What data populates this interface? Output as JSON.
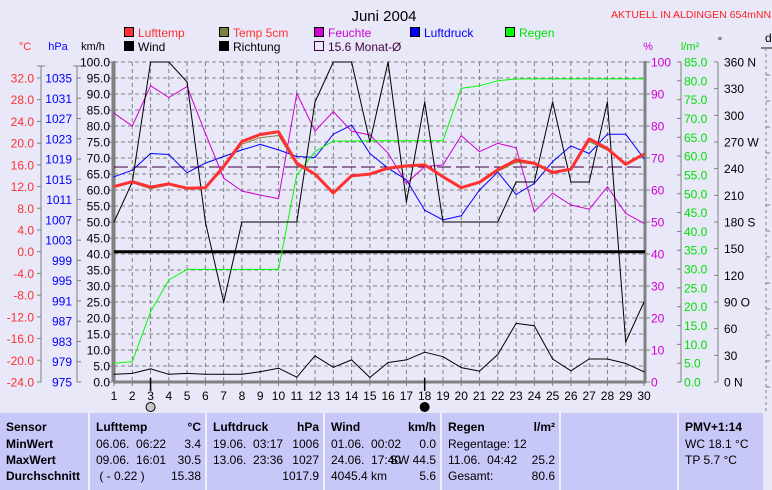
{
  "header": {
    "title": "Juni 2004",
    "station": "AKTUELL IN ALDINGEN 654mNN"
  },
  "legend": [
    {
      "label": "Lufttemp",
      "color": "#ff3030",
      "text_color": "#ff3030"
    },
    {
      "label": "Temp 5cm",
      "color": "#808040",
      "text_color": "#ff3030"
    },
    {
      "label": "Feuchte",
      "color": "#d000d0",
      "text_color": "#d000d0"
    },
    {
      "label": "Luftdruck",
      "color": "#0000ff",
      "text_color": "#0000ff"
    },
    {
      "label": "Regen",
      "color": "#00ff00",
      "text_color": "#00e000"
    },
    {
      "label": "Wind",
      "color": "#000000",
      "text_color": "#000000"
    },
    {
      "label": "Richtung",
      "color": "#000000",
      "text_color": "#000000"
    },
    {
      "label": "15.6 Monat-Ø",
      "color": "#400040",
      "text_color": "#400040"
    }
  ],
  "chart_data": {
    "type": "line",
    "title": "Juni 2004",
    "x": [
      1,
      2,
      3,
      4,
      5,
      6,
      7,
      8,
      9,
      10,
      11,
      12,
      13,
      14,
      15,
      16,
      17,
      18,
      19,
      20,
      21,
      22,
      23,
      24,
      25,
      26,
      27,
      28,
      29,
      30
    ],
    "xlim": [
      1,
      30
    ],
    "grid": true,
    "axes": {
      "temp": {
        "unit": "°C",
        "range": [
          -24,
          32
        ],
        "ticks": [
          "32.0",
          "28.0",
          "24.0",
          "20.0",
          "16.0",
          "12.0",
          "8.0",
          "4.0",
          "0.0",
          "-4.0",
          "-8.0",
          "-12.0",
          "-16.0",
          "-20.0",
          "-24.0"
        ],
        "color": "#ff3030"
      },
      "pressure": {
        "unit": "hPa",
        "range": [
          975,
          1035
        ],
        "ticks": [
          "1035",
          "1031",
          "1027",
          "1023",
          "1019",
          "1015",
          "1011",
          "1007",
          "1003",
          "999",
          "995",
          "991",
          "987",
          "983",
          "979",
          "975"
        ],
        "color": "#0000ff"
      },
      "wind": {
        "unit": "km/h",
        "range": [
          0,
          100
        ],
        "ticks": [
          "100.0",
          "95.0",
          "90.0",
          "85.0",
          "80.0",
          "75.0",
          "70.0",
          "65.0",
          "60.0",
          "55.0",
          "50.0",
          "45.0",
          "40.0",
          "35.0",
          "30.0",
          "25.0",
          "20.0",
          "15.0",
          "10.0",
          "5.0",
          "0.0"
        ],
        "color": "#000000"
      },
      "humidity": {
        "unit": "%",
        "range": [
          0,
          100
        ],
        "ticks": [
          "100",
          "90",
          "80",
          "70",
          "60",
          "50",
          "40",
          "30",
          "20",
          "10",
          "0"
        ],
        "color": "#d000d0"
      },
      "rain": {
        "unit": "l/m²",
        "range": [
          0,
          85
        ],
        "ticks": [
          "85.0",
          "80.0",
          "75.0",
          "70.0",
          "65.0",
          "60.0",
          "55.0",
          "50.0",
          "45.0",
          "40.0",
          "35.0",
          "30.0",
          "25.0",
          "20.0",
          "15.0",
          "10.0",
          "5.0",
          "0.0"
        ],
        "color": "#00e000"
      },
      "direction": {
        "unit": "°",
        "range": [
          0,
          360
        ],
        "ticks": [
          "360 N",
          "330",
          "300",
          "270 W",
          "240",
          "210",
          "180 S",
          "150",
          "120",
          "90  O",
          "60",
          "30",
          "0   N"
        ],
        "color": "#000000"
      },
      "extra": {
        "unit": "d"
      }
    },
    "series": [
      {
        "name": "Luftdruck",
        "axis": "pressure",
        "color": "#0000ff",
        "values": [
          1015.5,
          1016.8,
          1020.1,
          1019.9,
          1016.3,
          1018.2,
          1019.5,
          1020.8,
          1021.9,
          1020.8,
          1019.5,
          1019.3,
          1023.9,
          1025.7,
          1020.1,
          1017.2,
          1014.9,
          1008.9,
          1007.0,
          1007.8,
          1012.9,
          1016.4,
          1012.0,
          1014.2,
          1018.5,
          1021.6,
          1020.1,
          1023.9,
          1023.9,
          1019.1
        ]
      },
      {
        "name": "Feuchte",
        "axis": "humidity",
        "color": "#d000d0",
        "values": [
          84.0,
          80.0,
          92.6,
          88.9,
          92.3,
          77.7,
          63.7,
          59.7,
          58.4,
          57.3,
          90.2,
          78.4,
          84.5,
          78.4,
          77.2,
          71.5,
          62.1,
          67.3,
          67.8,
          77.0,
          72.0,
          74.6,
          73.2,
          53.2,
          59.0,
          55.3,
          54.0,
          61.0,
          52.7,
          49.6
        ]
      },
      {
        "name": "Regen",
        "axis": "rain",
        "color": "#00ff00",
        "values": [
          5.0,
          5.4,
          18.7,
          27.1,
          29.9,
          29.9,
          29.9,
          29.9,
          29.9,
          29.9,
          55.0,
          61.2,
          64.0,
          64.0,
          64.1,
          64.1,
          64.1,
          64.1,
          64.1,
          78.0,
          78.7,
          80.0,
          80.5,
          80.5,
          80.5,
          80.5,
          80.5,
          80.5,
          80.5,
          80.5
        ]
      },
      {
        "name": "Richtung",
        "axis": "direction",
        "color": "#000000",
        "values": [
          180,
          225,
          360,
          360,
          337.5,
          180,
          90,
          180,
          180,
          180,
          180,
          315,
          360,
          360,
          270,
          360,
          202.5,
          315,
          180,
          180,
          180,
          180,
          225,
          225,
          315,
          225,
          225,
          315,
          45,
          90
        ]
      },
      {
        "name": "Wind",
        "axis": "wind",
        "color": "#000000",
        "values": [
          2.4,
          2.7,
          4.1,
          2.4,
          2.7,
          2.4,
          2.4,
          2.4,
          3.2,
          4.3,
          1.5,
          8.2,
          4.6,
          6.9,
          1.4,
          6.1,
          6.9,
          9.3,
          7.9,
          4.5,
          3.4,
          8.6,
          18.3,
          17.6,
          7.2,
          3.5,
          7.2,
          7.2,
          5.8,
          3.2
        ]
      },
      {
        "name": "Temp 5cm",
        "axis": "temp",
        "color": "#808040",
        "values": [
          11.9,
          12.7,
          11.6,
          12.3,
          11.5,
          11.8,
          15.5,
          19.8,
          21.0,
          21.4,
          15.9,
          14.2,
          10.9,
          13.8,
          14.3,
          15.2,
          15.6,
          15.9,
          13.9,
          11.9,
          12.7,
          14.8,
          16.5,
          16.1,
          14.6,
          15.1,
          20.3,
          18.7,
          16.0,
          17.9
        ]
      },
      {
        "name": "Lufttemp",
        "axis": "temp",
        "color": "#ff3030",
        "values": [
          12.0,
          12.9,
          11.9,
          12.5,
          11.7,
          11.8,
          15.7,
          20.3,
          21.6,
          22.1,
          16.3,
          14.3,
          10.8,
          14.0,
          14.3,
          15.4,
          15.8,
          16.0,
          13.8,
          11.8,
          12.8,
          15.1,
          16.9,
          16.3,
          14.6,
          15.2,
          20.8,
          19.0,
          16.1,
          18.0
        ]
      }
    ],
    "reference_lines": [
      {
        "name": "zero-celsius-line",
        "axis": "temp",
        "value": 0.0,
        "color": "#000000"
      },
      {
        "name": "monthly-average-line",
        "axis": "temp",
        "value": 15.6,
        "color": "#400040",
        "label": "15.6 Monat-Ø"
      }
    ],
    "moon_phases": [
      {
        "day": 3,
        "phase": "full-moon"
      },
      {
        "day": 18,
        "phase": "new-moon"
      }
    ]
  },
  "footer": {
    "columns": [
      {
        "header": "Sensor",
        "unit": "",
        "rows": [
          {
            "l": "MinWert",
            "r": ""
          },
          {
            "l": "MaxWert",
            "r": ""
          },
          {
            "l": "Durchschnitt",
            "r": ""
          }
        ]
      },
      {
        "header": "Lufttemp",
        "unit": "°C",
        "rows": [
          {
            "l": "06.06.  06:22",
            "r": "3.4"
          },
          {
            "l": "09.06.  16:01",
            "r": "30.5"
          },
          {
            "l": " ( - 0.22 )",
            "r": "15.38"
          }
        ]
      },
      {
        "header": "Luftdruck",
        "unit": "hPa",
        "rows": [
          {
            "l": "19.06.  03:17",
            "r": "1006"
          },
          {
            "l": "13.06.  23:36",
            "r": "1027"
          },
          {
            "l": "",
            "r": "1017.9"
          }
        ]
      },
      {
        "header": "Wind",
        "unit": "km/h",
        "rows": [
          {
            "l": "01.06.  00:02",
            "r": "0.0"
          },
          {
            "l": "24.06.  17:40",
            "r": "SW 44.5"
          },
          {
            "l": "4045.4 km",
            "r": "5.6"
          }
        ]
      },
      {
        "header": "Regen",
        "unit": "l/m²",
        "rows": [
          {
            "l": "Regentage: 12",
            "r": ""
          },
          {
            "l": "11.06.  04:42",
            "r": "25.2"
          },
          {
            "l": "Gesamt:",
            "r": "80.6"
          }
        ]
      },
      {
        "header": "",
        "unit": "",
        "rows": [
          {
            "l": "",
            "r": ""
          },
          {
            "l": "",
            "r": ""
          },
          {
            "l": "",
            "r": ""
          }
        ]
      },
      {
        "header": "PMV+1:14",
        "unit": "",
        "rows": [
          {
            "l": "WC 18.1 °C",
            "r": ""
          },
          {
            "l": "TP 5.7 °C",
            "r": ""
          },
          {
            "l": "",
            "r": ""
          }
        ]
      }
    ]
  }
}
